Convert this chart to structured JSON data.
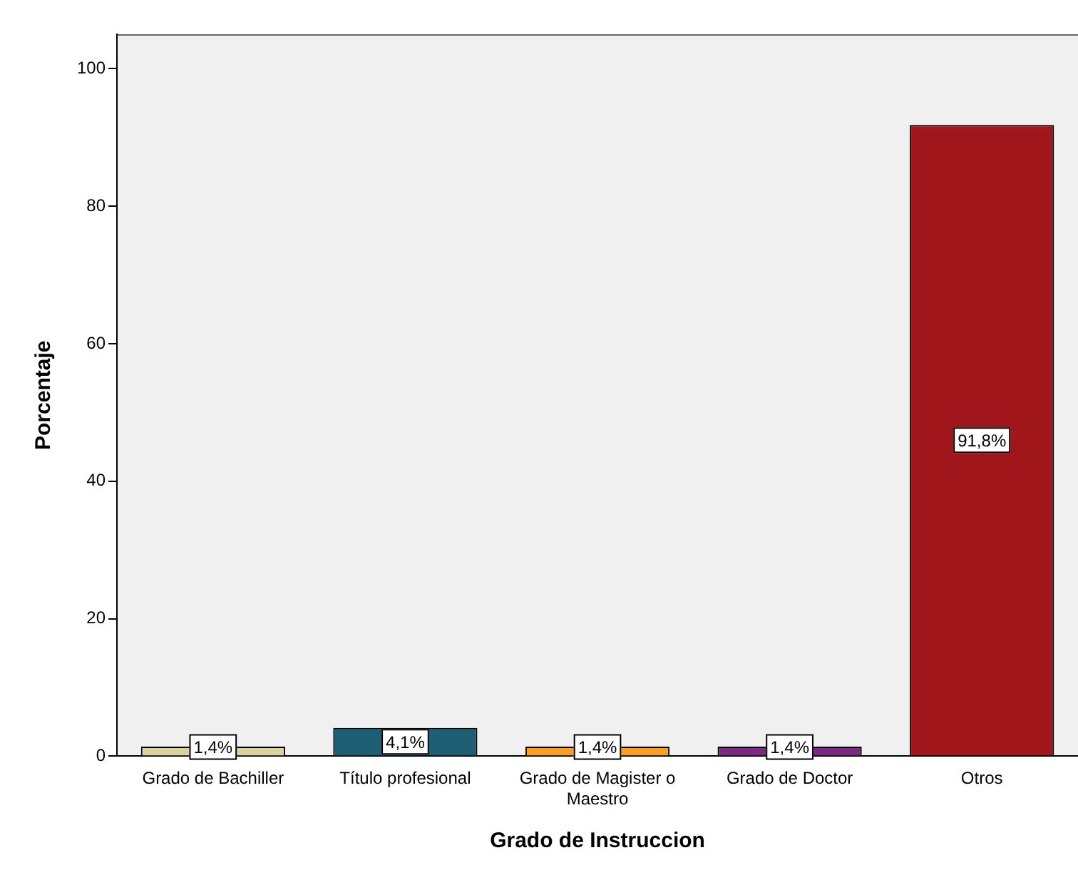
{
  "chart_data": {
    "type": "bar",
    "xlabel": "Grado de Instruccion",
    "ylabel": "Porcentaje",
    "categories": [
      "Grado de Bachiller",
      "Título profesional",
      "Grado de Magister o Maestro",
      "Grado de Doctor",
      "Otros"
    ],
    "values": [
      1.4,
      4.1,
      1.4,
      1.4,
      91.8
    ],
    "colors": [
      "#d8d3a0",
      "#1f5f75",
      "#f7a023",
      "#7a2a82",
      "#a0161a"
    ],
    "value_labels": [
      "1,4%",
      "4,1%",
      "1,4%",
      "1,4%",
      "91,8%"
    ],
    "ylim": [
      0,
      105
    ],
    "yticks": [
      0,
      20,
      40,
      60,
      80,
      100
    ],
    "grid": false,
    "legend": false
  }
}
